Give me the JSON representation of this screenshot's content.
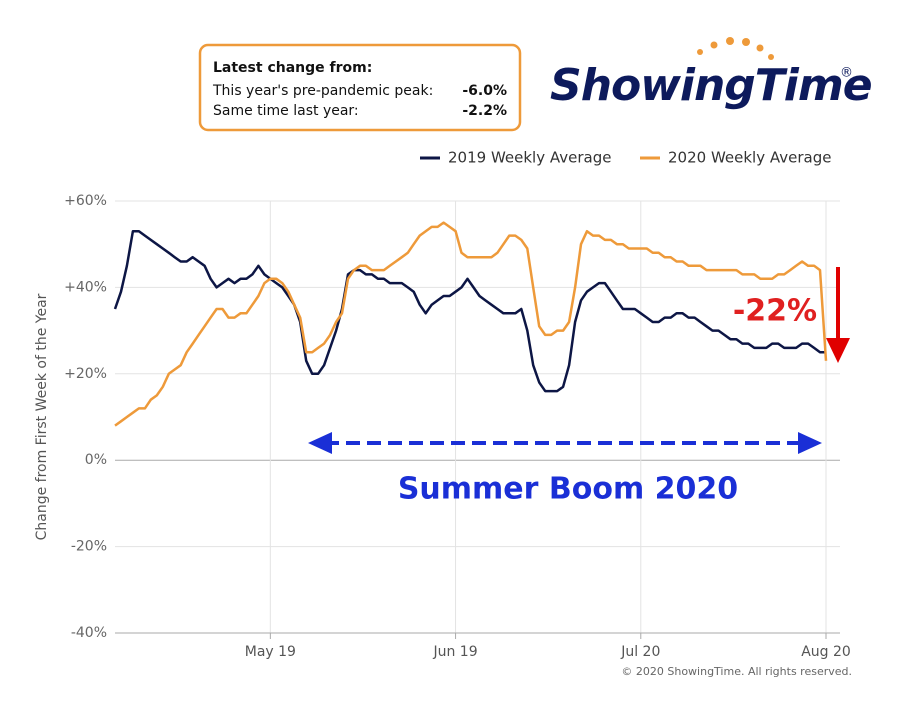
{
  "info_box": {
    "title": "Latest change from:",
    "rows": [
      {
        "label": "This year's pre-pandemic peak:",
        "value": "-6.0%"
      },
      {
        "label": "Same time last year:",
        "value": "-2.2%"
      }
    ]
  },
  "logo": {
    "name": "ShowingTime",
    "mark": "®"
  },
  "copyright": "© 2020 ShowingTime. All rights reserved.",
  "chart_data": {
    "type": "line",
    "y_label": "Change from First Week of the Year",
    "categories": [
      null,
      null,
      null,
      null,
      null,
      null,
      null,
      null,
      null,
      null,
      null,
      null,
      null,
      null,
      null,
      null,
      null,
      null,
      null,
      null,
      null,
      null,
      null,
      null,
      null,
      null,
      "May 19",
      null,
      null,
      null,
      null,
      null,
      null,
      null,
      null,
      null,
      null,
      null,
      null,
      null,
      null,
      null,
      null,
      null,
      null,
      null,
      null,
      null,
      null,
      null,
      null,
      null,
      null,
      null,
      null,
      null,
      null,
      "Jun 19",
      null,
      null,
      null,
      null,
      null,
      null,
      null,
      null,
      null,
      null,
      null,
      null,
      null,
      null,
      null,
      null,
      null,
      null,
      null,
      null,
      null,
      null,
      null,
      null,
      null,
      null,
      null,
      null,
      null,
      null,
      "Jul 20",
      null,
      null,
      null,
      null,
      null,
      null,
      null,
      null,
      null,
      null,
      null,
      null,
      null,
      null,
      null,
      null,
      null,
      null,
      null,
      null,
      null,
      null,
      null,
      null,
      null,
      null,
      null,
      null,
      null,
      null,
      "Aug 20"
    ],
    "series": [
      {
        "name": "2019 Weekly Average",
        "color": "#0d1645",
        "values": [
          35,
          39,
          45,
          53,
          53,
          52,
          51,
          50,
          49,
          48,
          47,
          46,
          46,
          47,
          46,
          45,
          42,
          40,
          41,
          42,
          41,
          42,
          42,
          43,
          45,
          43,
          42,
          41,
          40,
          38,
          36,
          32,
          23,
          20,
          20,
          22,
          26,
          30,
          35,
          43,
          44,
          44,
          43,
          43,
          42,
          42,
          41,
          41,
          41,
          40,
          39,
          36,
          34,
          36,
          37,
          38,
          38,
          39,
          40,
          42,
          40,
          38,
          37,
          36,
          35,
          34,
          34,
          34,
          35,
          30,
          22,
          18,
          16,
          16,
          16,
          17,
          22,
          32,
          37,
          39,
          40,
          41,
          41,
          39,
          37,
          35,
          35,
          35,
          34,
          33,
          32,
          32,
          33,
          33,
          34,
          34,
          33,
          33,
          32,
          31,
          30,
          30,
          29,
          28,
          28,
          27,
          27,
          26,
          26,
          26,
          27,
          27,
          26,
          26,
          26,
          27,
          27,
          26,
          25,
          25
        ]
      },
      {
        "name": "2020 Weekly Average",
        "color": "#ee9a3a",
        "values": [
          8,
          9,
          10,
          11,
          12,
          12,
          14,
          15,
          17,
          20,
          21,
          22,
          25,
          27,
          29,
          31,
          33,
          35,
          35,
          33,
          33,
          34,
          34,
          36,
          38,
          41,
          42,
          42,
          41,
          39,
          36,
          33,
          25,
          25,
          26,
          27,
          29,
          32,
          34,
          42,
          44,
          45,
          45,
          44,
          44,
          44,
          45,
          46,
          47,
          48,
          50,
          52,
          53,
          54,
          54,
          55,
          54,
          53,
          48,
          47,
          47,
          47,
          47,
          47,
          48,
          50,
          52,
          52,
          51,
          49,
          40,
          31,
          29,
          29,
          30,
          30,
          32,
          40,
          50,
          53,
          52,
          52,
          51,
          51,
          50,
          50,
          49,
          49,
          49,
          49,
          48,
          48,
          47,
          47,
          46,
          46,
          45,
          45,
          45,
          44,
          44,
          44,
          44,
          44,
          44,
          43,
          43,
          43,
          42,
          42,
          42,
          43,
          43,
          44,
          45,
          46,
          45,
          45,
          44,
          23
        ]
      }
    ],
    "ylim": [
      -40,
      60
    ],
    "yticks": [
      {
        "value": -40,
        "label": "-40%"
      },
      {
        "value": -20,
        "label": "-20%"
      },
      {
        "value": 0,
        "label": "0%"
      },
      {
        "value": 20,
        "label": "+20%"
      },
      {
        "value": 40,
        "label": "+40%"
      },
      {
        "value": 60,
        "label": "+60%"
      }
    ],
    "grid": true,
    "legend": "top-right",
    "annotations": [
      "-22%",
      "Summer Boom 2020"
    ]
  }
}
